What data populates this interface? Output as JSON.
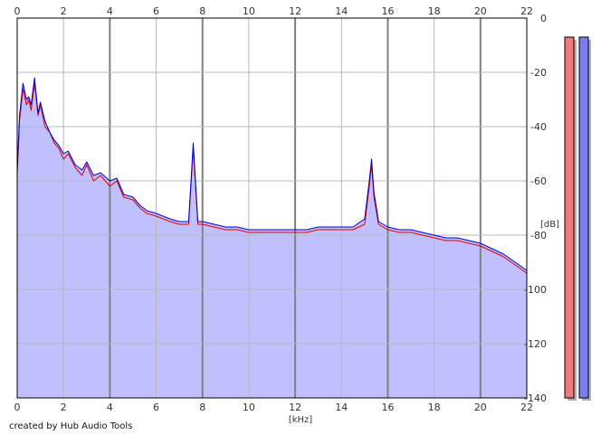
{
  "chart_data": {
    "type": "area",
    "xlabel": "[kHz]",
    "ylabel": "[dB]",
    "xlim": [
      0,
      22
    ],
    "ylim": [
      -140,
      0
    ],
    "x_ticks": [
      0,
      2,
      4,
      6,
      8,
      10,
      12,
      14,
      16,
      18,
      20,
      22
    ],
    "y_ticks": [
      0,
      -20,
      -40,
      -60,
      -80,
      -100,
      -120,
      -140
    ],
    "grid": true,
    "series": [
      {
        "color": "#e00000",
        "points": [
          [
            0.0,
            -58
          ],
          [
            0.1,
            -38
          ],
          [
            0.25,
            -26
          ],
          [
            0.4,
            -32
          ],
          [
            0.5,
            -30
          ],
          [
            0.6,
            -34
          ],
          [
            0.75,
            -24
          ],
          [
            0.9,
            -36
          ],
          [
            1.0,
            -32
          ],
          [
            1.2,
            -40
          ],
          [
            1.4,
            -42
          ],
          [
            1.6,
            -46
          ],
          [
            1.8,
            -48
          ],
          [
            2.0,
            -52
          ],
          [
            2.2,
            -50
          ],
          [
            2.5,
            -55
          ],
          [
            2.8,
            -58
          ],
          [
            3.0,
            -54
          ],
          [
            3.3,
            -60
          ],
          [
            3.6,
            -58
          ],
          [
            4.0,
            -62
          ],
          [
            4.3,
            -60
          ],
          [
            4.6,
            -66
          ],
          [
            5.0,
            -67
          ],
          [
            5.3,
            -70
          ],
          [
            5.6,
            -72
          ],
          [
            6.0,
            -73
          ],
          [
            6.3,
            -74
          ],
          [
            6.6,
            -75
          ],
          [
            7.0,
            -76
          ],
          [
            7.4,
            -76
          ],
          [
            7.6,
            -48
          ],
          [
            7.8,
            -76
          ],
          [
            8.0,
            -76
          ],
          [
            8.5,
            -77
          ],
          [
            9.0,
            -78
          ],
          [
            9.5,
            -78
          ],
          [
            10.0,
            -79
          ],
          [
            10.5,
            -79
          ],
          [
            11.0,
            -79
          ],
          [
            11.5,
            -79
          ],
          [
            12.0,
            -79
          ],
          [
            12.5,
            -79
          ],
          [
            13.0,
            -78
          ],
          [
            13.5,
            -78
          ],
          [
            14.0,
            -78
          ],
          [
            14.5,
            -78
          ],
          [
            15.0,
            -76
          ],
          [
            15.2,
            -62
          ],
          [
            15.3,
            -54
          ],
          [
            15.4,
            -66
          ],
          [
            15.6,
            -76
          ],
          [
            16.0,
            -78
          ],
          [
            16.5,
            -79
          ],
          [
            17.0,
            -79
          ],
          [
            17.5,
            -80
          ],
          [
            18.0,
            -81
          ],
          [
            18.5,
            -82
          ],
          [
            19.0,
            -82
          ],
          [
            19.5,
            -83
          ],
          [
            20.0,
            -84
          ],
          [
            20.5,
            -86
          ],
          [
            21.0,
            -88
          ],
          [
            21.5,
            -91
          ],
          [
            22.0,
            -94
          ]
        ]
      },
      {
        "color": "#0000cc",
        "points": [
          [
            0.0,
            -56
          ],
          [
            0.1,
            -36
          ],
          [
            0.25,
            -24
          ],
          [
            0.4,
            -30
          ],
          [
            0.5,
            -29
          ],
          [
            0.6,
            -32
          ],
          [
            0.75,
            -22
          ],
          [
            0.9,
            -35
          ],
          [
            1.0,
            -31
          ],
          [
            1.2,
            -38
          ],
          [
            1.4,
            -42
          ],
          [
            1.6,
            -45
          ],
          [
            1.8,
            -47
          ],
          [
            2.0,
            -50
          ],
          [
            2.2,
            -49
          ],
          [
            2.5,
            -54
          ],
          [
            2.8,
            -56
          ],
          [
            3.0,
            -53
          ],
          [
            3.3,
            -58
          ],
          [
            3.6,
            -57
          ],
          [
            4.0,
            -60
          ],
          [
            4.3,
            -59
          ],
          [
            4.6,
            -65
          ],
          [
            5.0,
            -66
          ],
          [
            5.3,
            -69
          ],
          [
            5.6,
            -71
          ],
          [
            6.0,
            -72
          ],
          [
            6.3,
            -73
          ],
          [
            6.6,
            -74
          ],
          [
            7.0,
            -75
          ],
          [
            7.4,
            -75
          ],
          [
            7.6,
            -46
          ],
          [
            7.8,
            -75
          ],
          [
            8.0,
            -75
          ],
          [
            8.5,
            -76
          ],
          [
            9.0,
            -77
          ],
          [
            9.5,
            -77
          ],
          [
            10.0,
            -78
          ],
          [
            10.5,
            -78
          ],
          [
            11.0,
            -78
          ],
          [
            11.5,
            -78
          ],
          [
            12.0,
            -78
          ],
          [
            12.5,
            -78
          ],
          [
            13.0,
            -77
          ],
          [
            13.5,
            -77
          ],
          [
            14.0,
            -77
          ],
          [
            14.5,
            -77
          ],
          [
            15.0,
            -74
          ],
          [
            15.2,
            -60
          ],
          [
            15.3,
            -52
          ],
          [
            15.4,
            -64
          ],
          [
            15.6,
            -75
          ],
          [
            16.0,
            -77
          ],
          [
            16.5,
            -78
          ],
          [
            17.0,
            -78
          ],
          [
            17.5,
            -79
          ],
          [
            18.0,
            -80
          ],
          [
            18.5,
            -81
          ],
          [
            19.0,
            -81
          ],
          [
            19.5,
            -82
          ],
          [
            20.0,
            -83
          ],
          [
            20.5,
            -85
          ],
          [
            21.0,
            -87
          ],
          [
            21.5,
            -90
          ],
          [
            22.0,
            -93
          ]
        ]
      }
    ],
    "area_fill": "#c0c0ff",
    "level_meters": [
      {
        "color": "#f07878",
        "level_db": -7
      },
      {
        "color": "#7c7cf2",
        "level_db": -7
      }
    ]
  },
  "footer": {
    "credit": "created by Hub Audio Tools"
  }
}
